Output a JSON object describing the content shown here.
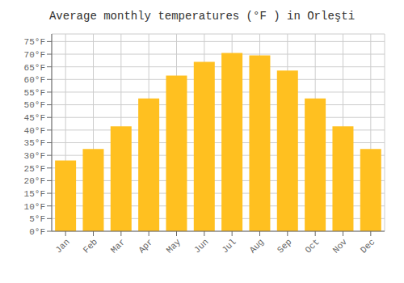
{
  "chart_data": {
    "type": "bar",
    "title": "Average monthly temperatures (°F ) in Orleşti",
    "categories": [
      "Jan",
      "Feb",
      "Mar",
      "Apr",
      "May",
      "Jun",
      "Jul",
      "Aug",
      "Sep",
      "Oct",
      "Nov",
      "Dec"
    ],
    "values": [
      28,
      32.5,
      41.5,
      52.5,
      61.5,
      67,
      70.5,
      69.5,
      63.5,
      52.5,
      41.5,
      32.5
    ],
    "color": "#FFC020",
    "ylim": [
      0,
      78
    ],
    "yticks": [
      {
        "value": 0,
        "label": "0°F"
      },
      {
        "value": 5,
        "label": "5°F"
      },
      {
        "value": 10,
        "label": "10°F"
      },
      {
        "value": 15,
        "label": "15°F"
      },
      {
        "value": 20,
        "label": "20°F"
      },
      {
        "value": 25,
        "label": "25°F"
      },
      {
        "value": 30,
        "label": "30°F"
      },
      {
        "value": 35,
        "label": "35°F"
      },
      {
        "value": 40,
        "label": "40°F"
      },
      {
        "value": 45,
        "label": "45°F"
      },
      {
        "value": 50,
        "label": "50°F"
      },
      {
        "value": 55,
        "label": "55°F"
      },
      {
        "value": 60,
        "label": "60°F"
      },
      {
        "value": 65,
        "label": "65°F"
      },
      {
        "value": 70,
        "label": "70°F"
      },
      {
        "value": 75,
        "label": "75°F"
      }
    ],
    "grid": true
  }
}
